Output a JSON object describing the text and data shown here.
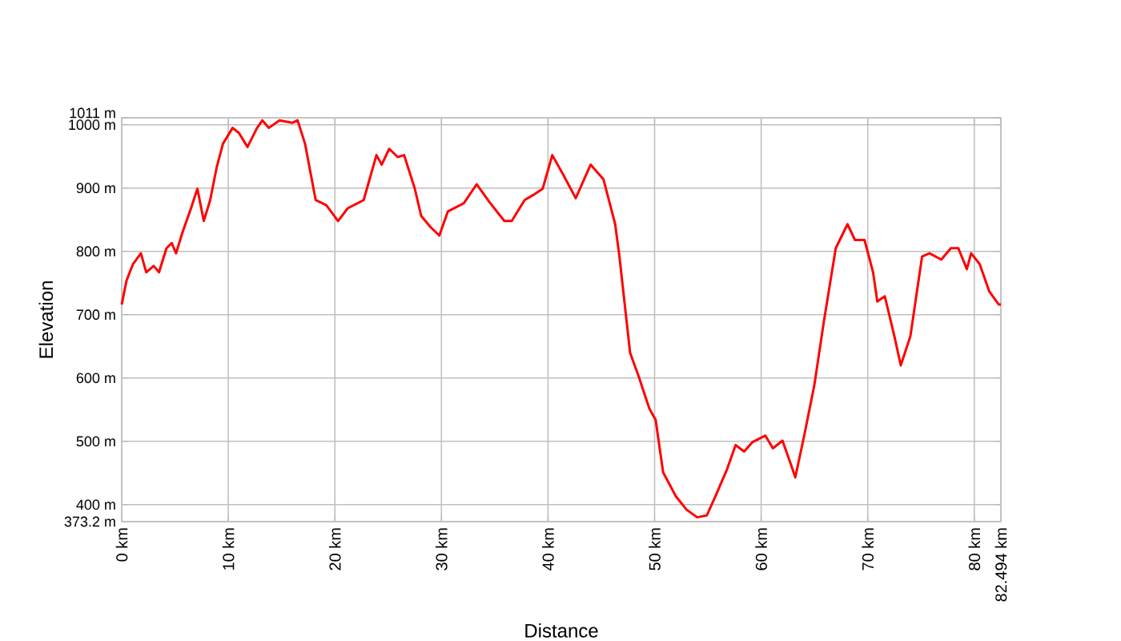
{
  "chart_data": {
    "type": "line",
    "xlabel": "Distance",
    "ylabel": "Elevation",
    "x": [
      0,
      0.45,
      1.06,
      1.8,
      2.3,
      3.0,
      3.5,
      4.2,
      4.7,
      5.1,
      5.7,
      6.5,
      7.1,
      7.7,
      8.3,
      8.9,
      9.5,
      10.4,
      11.0,
      11.8,
      12.7,
      13.2,
      13.8,
      14.8,
      16.0,
      16.5,
      17.2,
      18.2,
      19.2,
      20.3,
      21.2,
      22.7,
      23.9,
      24.4,
      25.1,
      25.9,
      26.5,
      27.5,
      28.1,
      29.0,
      29.8,
      30.6,
      32.1,
      33.3,
      34.5,
      35.9,
      36.6,
      37.8,
      38.6,
      39.5,
      40.4,
      41.5,
      42.6,
      44.0,
      45.2,
      46.3,
      46.7,
      47.7,
      48.5,
      49.5,
      50.1,
      50.8,
      52.0,
      53.0,
      54.0,
      54.9,
      55.7,
      56.8,
      57.6,
      58.4,
      59.2,
      60.4,
      61.1,
      62.0,
      62.8,
      63.2,
      64.1,
      65.0,
      65.9,
      67.0,
      68.1,
      68.8,
      69.7,
      70.5,
      70.9,
      71.6,
      72.5,
      73.1,
      74.0,
      75.1,
      75.8,
      76.9,
      77.8,
      78.5,
      79.3,
      79.7,
      80.5,
      81.4,
      82.3,
      82.494
    ],
    "series": [
      {
        "color": "#ff0000",
        "values": [
          716,
          754,
          780,
          797,
          767,
          777,
          767,
          805,
          813,
          797,
          830,
          868,
          899,
          848,
          881,
          932,
          970,
          995,
          987,
          965,
          995,
          1007,
          995,
          1007,
          1003,
          1007,
          970,
          881,
          873,
          848,
          868,
          881,
          952,
          937,
          962,
          949,
          952,
          899,
          856,
          838,
          825,
          863,
          876,
          906,
          878,
          848,
          848,
          881,
          889,
          899,
          952,
          919,
          884,
          937,
          914,
          843,
          792,
          640,
          603,
          552,
          534,
          451,
          413,
          392,
          380,
          383,
          413,
          456,
          494,
          484,
          499,
          509,
          489,
          501,
          463,
          443,
          514,
          590,
          691,
          805,
          843,
          818,
          818,
          767,
          721,
          729,
          666,
          620,
          666,
          792,
          797,
          787,
          805,
          805,
          772,
          797,
          780,
          737,
          716,
          716
        ]
      }
    ],
    "xlim": [
      0,
      82.494
    ],
    "ylim": [
      373.2,
      1011
    ],
    "xticks": [
      {
        "value": 0,
        "label": "0 km"
      },
      {
        "value": 10,
        "label": "10 km"
      },
      {
        "value": 20,
        "label": "20 km"
      },
      {
        "value": 30,
        "label": "30 km"
      },
      {
        "value": 40,
        "label": "40 km"
      },
      {
        "value": 50,
        "label": "50 km"
      },
      {
        "value": 60,
        "label": "60 km"
      },
      {
        "value": 70,
        "label": "70 km"
      },
      {
        "value": 80,
        "label": "80 km"
      },
      {
        "value": 82.494,
        "label": "82.494 km"
      }
    ],
    "yticks": [
      {
        "value": 373.2,
        "label": "373.2 m"
      },
      {
        "value": 400,
        "label": "400 m"
      },
      {
        "value": 500,
        "label": "500 m"
      },
      {
        "value": 600,
        "label": "600 m"
      },
      {
        "value": 700,
        "label": "700 m"
      },
      {
        "value": 800,
        "label": "800 m"
      },
      {
        "value": 900,
        "label": "900 m"
      },
      {
        "value": 1000,
        "label": "1000 m"
      },
      {
        "value": 1011,
        "label": "1011 m"
      }
    ],
    "grid": true,
    "marker": "none",
    "line_style": "solid"
  }
}
